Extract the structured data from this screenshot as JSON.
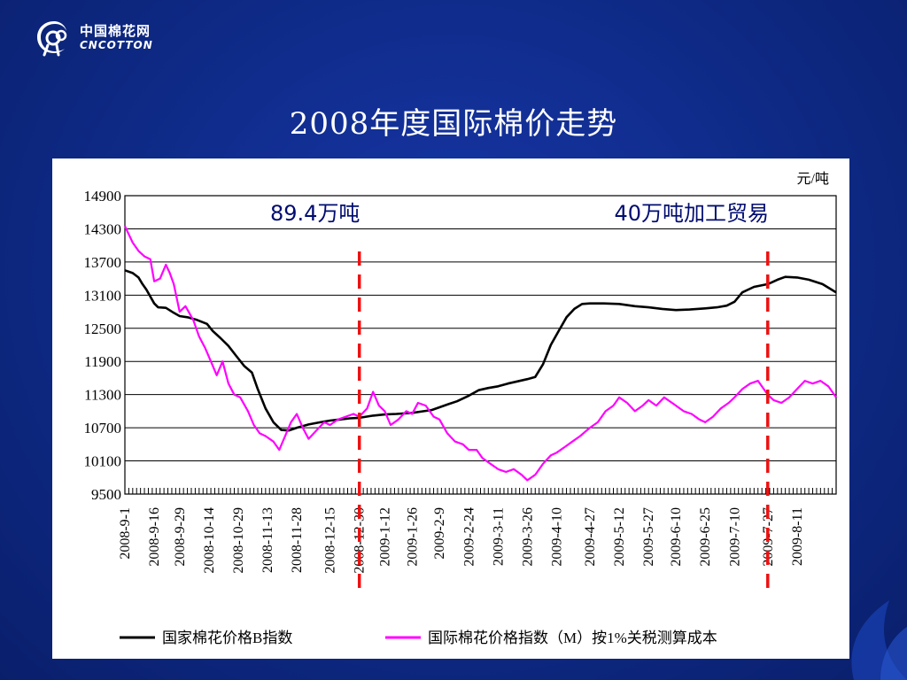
{
  "logo": {
    "cn": "中国棉花网",
    "en": "CNCOTTON",
    "icon": "cotton-logo-icon"
  },
  "title": "2008年度国际棉价走势",
  "chart_data": {
    "type": "line",
    "unit_label": "元/吨",
    "ylim": [
      9500,
      14900
    ],
    "yticks": [
      9500,
      10100,
      10700,
      11300,
      11900,
      12500,
      13100,
      13700,
      14300,
      14900
    ],
    "date_range": [
      "2008-09-01",
      "2009-08-31"
    ],
    "xticks": [
      "2008-9-1",
      "2008-9-16",
      "2008-9-29",
      "2008-10-14",
      "2008-10-29",
      "2008-11-13",
      "2008-11-28",
      "2008-12-15",
      "2008-12-30",
      "2009-1-12",
      "2009-1-26",
      "2009-2-9",
      "2009-2-24",
      "2009-3-11",
      "2009-3-26",
      "2009-4-10",
      "2009-4-27",
      "2009-5-12",
      "2009-5-27",
      "2009-6-10",
      "2009-6-25",
      "2009-7-10",
      "2009-7-27",
      "2009-8-11"
    ],
    "annotations": [
      {
        "text": "89.4万吨",
        "date": "2008-12-30"
      },
      {
        "text": "40万吨加工贸易",
        "date": "2009-07-27"
      }
    ],
    "series": [
      {
        "name": "国家棉花价格B指数",
        "color": "#000000",
        "points": [
          [
            "2008-09-01",
            13550
          ],
          [
            "2008-09-05",
            13500
          ],
          [
            "2008-09-08",
            13420
          ],
          [
            "2008-09-10",
            13300
          ],
          [
            "2008-09-12",
            13200
          ],
          [
            "2008-09-16",
            12950
          ],
          [
            "2008-09-18",
            12880
          ],
          [
            "2008-09-22",
            12870
          ],
          [
            "2008-09-26",
            12780
          ],
          [
            "2008-09-29",
            12720
          ],
          [
            "2008-10-03",
            12700
          ],
          [
            "2008-10-08",
            12650
          ],
          [
            "2008-10-13",
            12580
          ],
          [
            "2008-10-16",
            12450
          ],
          [
            "2008-10-20",
            12320
          ],
          [
            "2008-10-24",
            12180
          ],
          [
            "2008-10-28",
            12000
          ],
          [
            "2008-11-01",
            11820
          ],
          [
            "2008-11-05",
            11700
          ],
          [
            "2008-11-08",
            11400
          ],
          [
            "2008-11-12",
            11050
          ],
          [
            "2008-11-16",
            10800
          ],
          [
            "2008-11-20",
            10660
          ],
          [
            "2008-11-24",
            10650
          ],
          [
            "2008-11-28",
            10700
          ],
          [
            "2008-12-04",
            10760
          ],
          [
            "2008-12-10",
            10800
          ],
          [
            "2008-12-15",
            10830
          ],
          [
            "2008-12-20",
            10850
          ],
          [
            "2008-12-25",
            10870
          ],
          [
            "2008-12-30",
            10880
          ],
          [
            "2009-01-06",
            10920
          ],
          [
            "2009-01-12",
            10940
          ],
          [
            "2009-01-18",
            10950
          ],
          [
            "2009-01-26",
            10970
          ],
          [
            "2009-02-01",
            11000
          ],
          [
            "2009-02-05",
            11020
          ],
          [
            "2009-02-09",
            11070
          ],
          [
            "2009-02-13",
            11120
          ],
          [
            "2009-02-18",
            11180
          ],
          [
            "2009-02-24",
            11280
          ],
          [
            "2009-03-01",
            11380
          ],
          [
            "2009-03-06",
            11420
          ],
          [
            "2009-03-11",
            11450
          ],
          [
            "2009-03-16",
            11500
          ],
          [
            "2009-03-21",
            11540
          ],
          [
            "2009-03-26",
            11580
          ],
          [
            "2009-03-30",
            11620
          ],
          [
            "2009-04-03",
            11850
          ],
          [
            "2009-04-07",
            12200
          ],
          [
            "2009-04-11",
            12450
          ],
          [
            "2009-04-15",
            12700
          ],
          [
            "2009-04-19",
            12850
          ],
          [
            "2009-04-23",
            12940
          ],
          [
            "2009-04-27",
            12950
          ],
          [
            "2009-05-04",
            12950
          ],
          [
            "2009-05-12",
            12940
          ],
          [
            "2009-05-20",
            12900
          ],
          [
            "2009-05-27",
            12880
          ],
          [
            "2009-06-03",
            12850
          ],
          [
            "2009-06-10",
            12830
          ],
          [
            "2009-06-17",
            12840
          ],
          [
            "2009-06-25",
            12860
          ],
          [
            "2009-07-01",
            12880
          ],
          [
            "2009-07-06",
            12910
          ],
          [
            "2009-07-10",
            12980
          ],
          [
            "2009-07-14",
            13150
          ],
          [
            "2009-07-20",
            13250
          ],
          [
            "2009-07-27",
            13300
          ],
          [
            "2009-08-01",
            13380
          ],
          [
            "2009-08-05",
            13430
          ],
          [
            "2009-08-11",
            13420
          ],
          [
            "2009-08-17",
            13380
          ],
          [
            "2009-08-24",
            13300
          ],
          [
            "2009-08-31",
            13150
          ]
        ]
      },
      {
        "name": "国际棉花价格指数（M）按1%关税测算成本",
        "color": "#ff00ff",
        "points": [
          [
            "2008-09-01",
            14350
          ],
          [
            "2008-09-03",
            14200
          ],
          [
            "2008-09-05",
            14050
          ],
          [
            "2008-09-08",
            13900
          ],
          [
            "2008-09-11",
            13800
          ],
          [
            "2008-09-14",
            13750
          ],
          [
            "2008-09-16",
            13350
          ],
          [
            "2008-09-19",
            13400
          ],
          [
            "2008-09-22",
            13650
          ],
          [
            "2008-09-24",
            13500
          ],
          [
            "2008-09-26",
            13300
          ],
          [
            "2008-09-29",
            12800
          ],
          [
            "2008-10-02",
            12900
          ],
          [
            "2008-10-06",
            12650
          ],
          [
            "2008-10-09",
            12350
          ],
          [
            "2008-10-12",
            12150
          ],
          [
            "2008-10-15",
            11900
          ],
          [
            "2008-10-18",
            11650
          ],
          [
            "2008-10-21",
            11900
          ],
          [
            "2008-10-24",
            11500
          ],
          [
            "2008-10-27",
            11300
          ],
          [
            "2008-10-30",
            11250
          ],
          [
            "2008-11-03",
            11000
          ],
          [
            "2008-11-06",
            10750
          ],
          [
            "2008-11-09",
            10600
          ],
          [
            "2008-11-12",
            10550
          ],
          [
            "2008-11-16",
            10450
          ],
          [
            "2008-11-19",
            10300
          ],
          [
            "2008-11-22",
            10550
          ],
          [
            "2008-11-25",
            10800
          ],
          [
            "2008-11-28",
            10950
          ],
          [
            "2008-12-01",
            10700
          ],
          [
            "2008-12-04",
            10500
          ],
          [
            "2008-12-08",
            10650
          ],
          [
            "2008-12-12",
            10800
          ],
          [
            "2008-12-15",
            10750
          ],
          [
            "2008-12-19",
            10850
          ],
          [
            "2008-12-23",
            10900
          ],
          [
            "2008-12-27",
            10950
          ],
          [
            "2008-12-30",
            10900
          ],
          [
            "2009-01-03",
            11050
          ],
          [
            "2009-01-06",
            11350
          ],
          [
            "2009-01-09",
            11100
          ],
          [
            "2009-01-12",
            11000
          ],
          [
            "2009-01-15",
            10750
          ],
          [
            "2009-01-19",
            10850
          ],
          [
            "2009-01-23",
            11000
          ],
          [
            "2009-01-26",
            10950
          ],
          [
            "2009-01-29",
            11150
          ],
          [
            "2009-02-02",
            11100
          ],
          [
            "2009-02-06",
            10900
          ],
          [
            "2009-02-09",
            10850
          ],
          [
            "2009-02-13",
            10600
          ],
          [
            "2009-02-17",
            10450
          ],
          [
            "2009-02-21",
            10400
          ],
          [
            "2009-02-24",
            10300
          ],
          [
            "2009-02-28",
            10300
          ],
          [
            "2009-03-03",
            10150
          ],
          [
            "2009-03-07",
            10050
          ],
          [
            "2009-03-11",
            9950
          ],
          [
            "2009-03-15",
            9900
          ],
          [
            "2009-03-19",
            9950
          ],
          [
            "2009-03-23",
            9850
          ],
          [
            "2009-03-26",
            9750
          ],
          [
            "2009-03-30",
            9850
          ],
          [
            "2009-04-03",
            10050
          ],
          [
            "2009-04-07",
            10200
          ],
          [
            "2009-04-10",
            10250
          ],
          [
            "2009-04-14",
            10350
          ],
          [
            "2009-04-18",
            10450
          ],
          [
            "2009-04-22",
            10550
          ],
          [
            "2009-04-27",
            10700
          ],
          [
            "2009-05-01",
            10800
          ],
          [
            "2009-05-05",
            11000
          ],
          [
            "2009-05-09",
            11100
          ],
          [
            "2009-05-12",
            11250
          ],
          [
            "2009-05-16",
            11150
          ],
          [
            "2009-05-20",
            11000
          ],
          [
            "2009-05-24",
            11100
          ],
          [
            "2009-05-27",
            11200
          ],
          [
            "2009-05-31",
            11100
          ],
          [
            "2009-06-04",
            11250
          ],
          [
            "2009-06-08",
            11150
          ],
          [
            "2009-06-10",
            11100
          ],
          [
            "2009-06-14",
            11000
          ],
          [
            "2009-06-18",
            10950
          ],
          [
            "2009-06-22",
            10850
          ],
          [
            "2009-06-25",
            10800
          ],
          [
            "2009-06-29",
            10900
          ],
          [
            "2009-07-03",
            11050
          ],
          [
            "2009-07-07",
            11150
          ],
          [
            "2009-07-10",
            11250
          ],
          [
            "2009-07-14",
            11400
          ],
          [
            "2009-07-18",
            11500
          ],
          [
            "2009-07-22",
            11550
          ],
          [
            "2009-07-27",
            11300
          ],
          [
            "2009-07-30",
            11200
          ],
          [
            "2009-08-03",
            11150
          ],
          [
            "2009-08-07",
            11250
          ],
          [
            "2009-08-11",
            11400
          ],
          [
            "2009-08-15",
            11550
          ],
          [
            "2009-08-19",
            11500
          ],
          [
            "2009-08-23",
            11550
          ],
          [
            "2009-08-27",
            11450
          ],
          [
            "2009-08-31",
            11250
          ]
        ]
      }
    ]
  }
}
